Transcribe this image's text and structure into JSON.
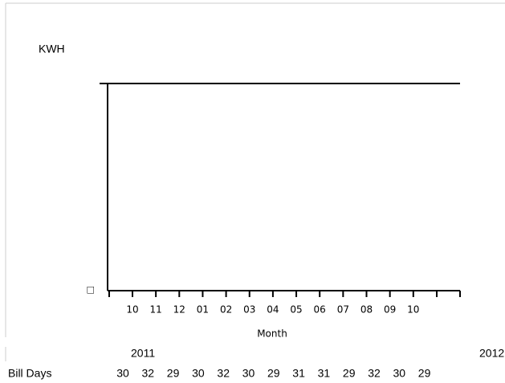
{
  "chart_data": {
    "type": "bar",
    "y_label": "KWH",
    "x_label": "Month",
    "categories": [
      "10",
      "11",
      "12",
      "01",
      "02",
      "03",
      "04",
      "05",
      "06",
      "07",
      "08",
      "09",
      "10"
    ],
    "values": [
      null,
      null,
      null,
      null,
      null,
      null,
      null,
      null,
      null,
      null,
      null,
      null,
      null
    ],
    "yticks": [
      {
        "value": 0,
        "label": "□"
      }
    ],
    "years": [
      "2011",
      "2012"
    ],
    "bill_days_label": "Bill Days",
    "bill_days": [
      30,
      32,
      29,
      30,
      32,
      30,
      29,
      31,
      31,
      29,
      32,
      30,
      29
    ]
  }
}
